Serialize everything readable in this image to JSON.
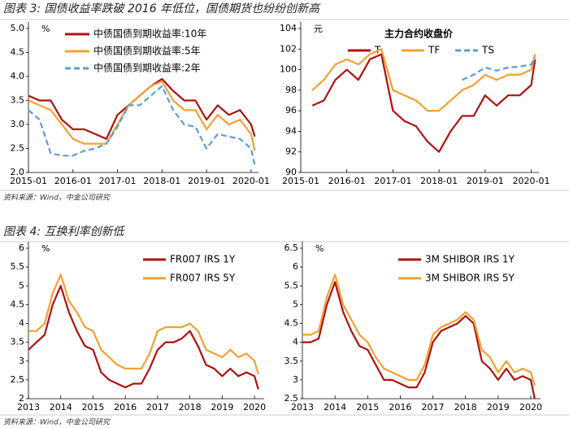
{
  "figures": [
    {
      "title": "图表 3: 国债收益率跌破 2016 年低位，国债期货也纷纷创新高",
      "source": "资料来源：Wind，中金公司研究"
    },
    {
      "title": "图表 4: 互换利率创新低",
      "source": "资料来源：Wind，中金公司研究"
    }
  ],
  "chart_data": [
    {
      "type": "line",
      "y_unit": "%",
      "legend": "upper left",
      "x": [
        "2015-01",
        "2015-04",
        "2015-07",
        "2015-10",
        "2016-01",
        "2016-04",
        "2016-07",
        "2016-10",
        "2017-01",
        "2017-04",
        "2017-07",
        "2017-10",
        "2018-01",
        "2018-04",
        "2018-07",
        "2018-10",
        "2019-01",
        "2019-04",
        "2019-07",
        "2019-10",
        "2020-01",
        "2020-02"
      ],
      "xlim": [
        "2015-01",
        "2020-03"
      ],
      "xticks": [
        "2015-01",
        "2016-01",
        "2017-01",
        "2018-01",
        "2019-01",
        "2020-01"
      ],
      "ylim": [
        2,
        5
      ],
      "yticks": [
        {
          "value": 2,
          "label": "2.0"
        },
        2.5,
        {
          "value": 3,
          "label": "3.0"
        },
        3.5,
        {
          "value": 4,
          "label": "4.0"
        },
        4.5,
        {
          "value": 5,
          "label": "5.0"
        }
      ],
      "series": [
        {
          "name": "中债国债到期收益率:10年",
          "color": "#b01010",
          "dash": false,
          "values": [
            3.6,
            3.5,
            3.5,
            3.1,
            2.9,
            2.9,
            2.8,
            2.7,
            3.2,
            3.4,
            3.6,
            3.8,
            3.95,
            3.7,
            3.5,
            3.5,
            3.1,
            3.4,
            3.2,
            3.3,
            3.0,
            2.75
          ]
        },
        {
          "name": "中债国债到期收益率:5年",
          "color": "#f5a030",
          "dash": false,
          "values": [
            3.5,
            3.4,
            3.3,
            3.0,
            2.7,
            2.6,
            2.6,
            2.6,
            3.0,
            3.4,
            3.6,
            3.8,
            3.9,
            3.5,
            3.3,
            3.3,
            2.9,
            3.2,
            3.0,
            3.1,
            2.8,
            2.45
          ]
        },
        {
          "name": "中债国债到期收益率:2年",
          "color": "#5b9bd5",
          "dash": true,
          "values": [
            3.3,
            3.1,
            2.4,
            2.35,
            2.35,
            2.45,
            2.5,
            2.6,
            2.95,
            3.4,
            3.4,
            3.6,
            3.8,
            3.3,
            3.0,
            2.95,
            2.5,
            2.8,
            2.75,
            2.7,
            2.5,
            2.15
          ]
        }
      ]
    },
    {
      "type": "line",
      "title": "主力合约收盘价",
      "y_unit": "元",
      "legend": "upper center",
      "x": [
        "2015-04",
        "2015-07",
        "2015-10",
        "2016-01",
        "2016-04",
        "2016-07",
        "2016-10",
        "2017-01",
        "2017-04",
        "2017-07",
        "2017-10",
        "2018-01",
        "2018-04",
        "2018-07",
        "2018-10",
        "2019-01",
        "2019-04",
        "2019-07",
        "2019-10",
        "2020-01",
        "2020-02"
      ],
      "xlim": [
        "2015-01",
        "2020-03"
      ],
      "xticks": [
        "2015-01",
        "2016-01",
        "2017-01",
        "2018-01",
        "2019-01",
        "2020-01"
      ],
      "ylim": [
        90,
        104
      ],
      "yticks": [
        90,
        92,
        94,
        96,
        98,
        100,
        102,
        104
      ],
      "series": [
        {
          "name": "T",
          "color": "#b01010",
          "dash": false,
          "values": [
            96.5,
            97,
            99,
            100,
            99,
            101,
            101.5,
            96,
            95,
            94.5,
            93,
            92,
            94,
            95.5,
            95.5,
            97.5,
            96.5,
            97.5,
            97.5,
            98.5,
            101
          ]
        },
        {
          "name": "TF",
          "color": "#f5a030",
          "dash": false,
          "values": [
            98,
            99,
            100.5,
            101,
            100.5,
            101.5,
            102,
            98,
            97.5,
            97,
            96,
            96,
            97,
            98,
            98.5,
            99.5,
            99,
            99.5,
            99.5,
            100,
            101.5
          ]
        },
        {
          "name": "TS",
          "color": "#5b9bd5",
          "dash": true,
          "values": [
            null,
            null,
            null,
            null,
            null,
            null,
            null,
            null,
            null,
            null,
            null,
            null,
            null,
            99.0,
            99.5,
            100.2,
            99.9,
            100.2,
            100.3,
            100.5,
            101.2
          ]
        }
      ]
    },
    {
      "type": "line",
      "y_unit": "%",
      "legend": "upper right",
      "x": [
        2013.0,
        2013.25,
        2013.5,
        2013.75,
        2014.0,
        2014.25,
        2014.5,
        2014.75,
        2015.0,
        2015.25,
        2015.5,
        2015.75,
        2016.0,
        2016.25,
        2016.5,
        2016.75,
        2017.0,
        2017.25,
        2017.5,
        2017.75,
        2018.0,
        2018.25,
        2018.5,
        2018.75,
        2019.0,
        2019.25,
        2019.5,
        2019.75,
        2020.0,
        2020.12
      ],
      "xlim": [
        2013,
        2020.3
      ],
      "xticks": [
        2013,
        2014,
        2015,
        2016,
        2017,
        2018,
        2019,
        2020
      ],
      "ylim": [
        2,
        6
      ],
      "yticks": [
        2,
        2.5,
        3,
        3.5,
        4,
        4.5,
        5,
        5.5,
        6
      ],
      "series": [
        {
          "name": "FR007 IRS 1Y",
          "color": "#b01010",
          "dash": false,
          "values": [
            3.3,
            3.5,
            3.7,
            4.5,
            5.0,
            4.3,
            3.8,
            3.4,
            3.3,
            2.7,
            2.5,
            2.4,
            2.3,
            2.4,
            2.4,
            2.8,
            3.3,
            3.5,
            3.5,
            3.6,
            3.8,
            3.4,
            2.9,
            2.8,
            2.6,
            2.8,
            2.6,
            2.7,
            2.6,
            2.25
          ]
        },
        {
          "name": "FR007 IRS 5Y",
          "color": "#f5a030",
          "dash": false,
          "values": [
            3.8,
            3.8,
            4.0,
            4.8,
            5.3,
            4.6,
            4.3,
            3.9,
            3.8,
            3.3,
            3.1,
            2.9,
            2.8,
            2.8,
            2.8,
            3.2,
            3.8,
            3.9,
            3.9,
            3.9,
            4.0,
            3.8,
            3.3,
            3.2,
            3.1,
            3.3,
            3.1,
            3.2,
            3.0,
            2.65
          ]
        }
      ]
    },
    {
      "type": "line",
      "y_unit": "%",
      "legend": "upper right",
      "x": [
        2013.0,
        2013.25,
        2013.5,
        2013.75,
        2014.0,
        2014.25,
        2014.5,
        2014.75,
        2015.0,
        2015.25,
        2015.5,
        2015.75,
        2016.0,
        2016.25,
        2016.5,
        2016.75,
        2017.0,
        2017.25,
        2017.5,
        2017.75,
        2018.0,
        2018.25,
        2018.5,
        2018.75,
        2019.0,
        2019.25,
        2019.5,
        2019.75,
        2020.0,
        2020.12
      ],
      "xlim": [
        2013,
        2020.3
      ],
      "xticks": [
        2013,
        2014,
        2015,
        2016,
        2017,
        2018,
        2019,
        2020
      ],
      "ylim": [
        2.5,
        6.5
      ],
      "yticks": [
        2.5,
        3,
        3.5,
        4,
        4.5,
        5,
        5.5,
        6,
        6.5
      ],
      "series": [
        {
          "name": "3M SHIBOR IRS 1Y",
          "color": "#b01010",
          "dash": false,
          "values": [
            4.0,
            4.0,
            4.1,
            5.0,
            5.6,
            4.8,
            4.3,
            3.9,
            3.8,
            3.4,
            3.0,
            3.0,
            2.9,
            2.8,
            2.8,
            3.2,
            4.0,
            4.3,
            4.4,
            4.5,
            4.7,
            4.5,
            3.5,
            3.3,
            3.0,
            3.3,
            3.0,
            3.1,
            3.0,
            2.5
          ]
        },
        {
          "name": "3M SHIBOR IRS 5Y",
          "color": "#f5a030",
          "dash": false,
          "values": [
            4.2,
            4.2,
            4.3,
            5.2,
            5.8,
            5.0,
            4.6,
            4.2,
            4.0,
            3.6,
            3.3,
            3.2,
            3.1,
            3.0,
            3.0,
            3.4,
            4.2,
            4.4,
            4.5,
            4.6,
            4.8,
            4.6,
            3.8,
            3.6,
            3.2,
            3.5,
            3.2,
            3.3,
            3.2,
            2.85
          ]
        }
      ]
    }
  ]
}
